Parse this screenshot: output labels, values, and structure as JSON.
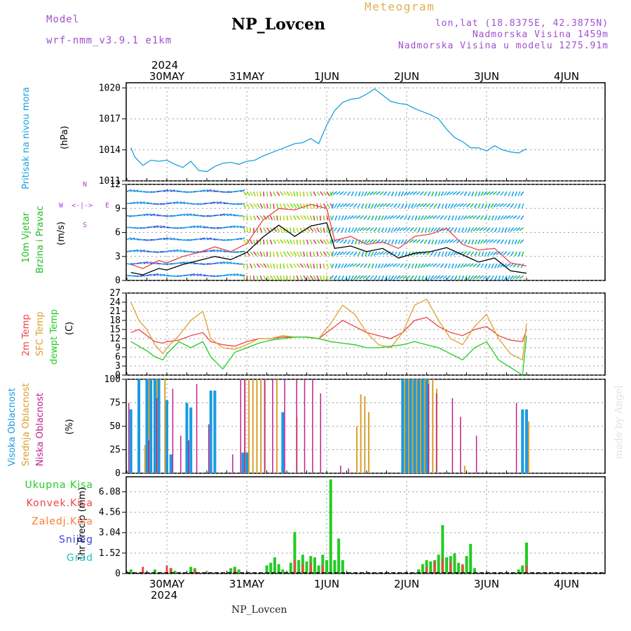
{
  "header": {
    "model_label": "Model",
    "model_name": "wrf-nmm_v3.9.1 e1km",
    "station": "NP_Lovcen",
    "meteogram_label": "Meteogram",
    "lonlat": "lon,lat (18.8375E, 42.3875N)",
    "altitude": "Nadmorska Visina 1459m",
    "model_altitude": "Nadmorska Visina u modelu 1275.91m",
    "year_top": "2024",
    "year_bottom": "2024",
    "footer_station": "NP_Lovcen",
    "watermark": "made by Angel"
  },
  "colors": {
    "pressure": "#1aa0e0",
    "t2m": "#ee4444",
    "sfc": "#e0a030",
    "dew": "#22cc22",
    "high_cloud": "#1a9ae0",
    "mid_cloud": "#d8a030",
    "low_cloud": "#c02090",
    "total_precip": "#22cc22",
    "conv_precip": "#ee4444",
    "frozen_precip": "#ff7a30",
    "snow": "#4040dd",
    "graupel": "#22c4c4",
    "wind_label": "#22bb22",
    "wind_dir_label": "#b040e0"
  },
  "chart_data": [
    {
      "type": "line",
      "title": "",
      "ylabel_parts": [
        "Pritisak na nivou mora",
        "(hPa)"
      ],
      "ylim": [
        1011,
        1020.5
      ],
      "yticks": [
        "1011",
        "1014",
        "1017",
        "1020"
      ],
      "x_unit": "days since 2024-05-30 00 UTC",
      "x_tick_labels": [
        "30MAY",
        "31MAY",
        "1JUN",
        "2JUN",
        "3JUN",
        "4JUN"
      ],
      "series": [
        {
          "name": "Pritisak na nivou mora",
          "x": [
            -0.45,
            -0.4,
            -0.3,
            -0.2,
            -0.1,
            0.0,
            0.1,
            0.2,
            0.3,
            0.4,
            0.5,
            0.6,
            0.7,
            0.8,
            0.9,
            1.0,
            1.1,
            1.2,
            1.3,
            1.4,
            1.5,
            1.6,
            1.7,
            1.8,
            1.9,
            2.0,
            2.1,
            2.2,
            2.3,
            2.4,
            2.5,
            2.6,
            2.7,
            2.8,
            2.9,
            3.0,
            3.1,
            3.2,
            3.3,
            3.4,
            3.5,
            3.6,
            3.7,
            3.8,
            3.9,
            4.0,
            4.1,
            4.2,
            4.3,
            4.4,
            4.5
          ],
          "values": [
            1014.2,
            1013.3,
            1012.5,
            1013.0,
            1012.9,
            1013.0,
            1012.6,
            1012.3,
            1012.9,
            1012.0,
            1011.9,
            1012.4,
            1012.7,
            1012.8,
            1012.6,
            1012.9,
            1013.0,
            1013.4,
            1013.7,
            1014.0,
            1014.3,
            1014.6,
            1014.7,
            1015.1,
            1014.6,
            1016.4,
            1017.8,
            1018.6,
            1018.9,
            1019.0,
            1019.4,
            1019.9,
            1019.3,
            1018.7,
            1018.5,
            1018.4,
            1018.0,
            1017.7,
            1017.4,
            1017.0,
            1016.0,
            1015.2,
            1014.8,
            1014.2,
            1014.2,
            1013.9,
            1014.4,
            1014.0,
            1013.8,
            1013.7,
            1014.1
          ]
        }
      ]
    },
    {
      "type": "line",
      "title": "",
      "ylabel_parts": [
        "10m Vjetar",
        "Brzina i Pravac",
        "(m/s)"
      ],
      "direction_legend": [
        "N",
        "E",
        "S",
        "W"
      ],
      "ylim": [
        0,
        12
      ],
      "yticks": [
        "0",
        "3",
        "6",
        "9",
        "12"
      ],
      "x_tick_labels": [
        "30MAY",
        "31MAY",
        "1JUN",
        "2JUN",
        "3JUN",
        "4JUN"
      ],
      "series": [
        {
          "name": "Brzina",
          "x": [
            -0.45,
            -0.3,
            -0.1,
            0.0,
            0.2,
            0.4,
            0.6,
            0.8,
            1.0,
            1.2,
            1.4,
            1.6,
            1.8,
            2.0,
            2.1,
            2.3,
            2.5,
            2.7,
            2.9,
            3.1,
            3.3,
            3.5,
            3.7,
            3.9,
            4.1,
            4.3,
            4.5
          ],
          "values": [
            1.0,
            0.7,
            1.5,
            1.3,
            2.0,
            2.5,
            3.0,
            2.6,
            3.5,
            5.4,
            6.9,
            5.5,
            6.8,
            7.2,
            4.0,
            4.3,
            3.6,
            4.0,
            2.8,
            3.4,
            3.6,
            4.1,
            3.2,
            2.3,
            2.8,
            1.2,
            0.9
          ]
        },
        {
          "name": "Udari",
          "x": [
            -0.45,
            -0.3,
            -0.1,
            0.0,
            0.2,
            0.4,
            0.6,
            0.8,
            1.0,
            1.2,
            1.4,
            1.6,
            1.8,
            2.0,
            2.1,
            2.3,
            2.5,
            2.7,
            2.9,
            3.1,
            3.3,
            3.5,
            3.7,
            3.9,
            4.1,
            4.3,
            4.5
          ],
          "values": [
            2.0,
            1.5,
            2.5,
            2.2,
            3.0,
            3.5,
            4.2,
            3.6,
            4.6,
            7.5,
            9.0,
            8.8,
            9.5,
            9.0,
            5.0,
            5.5,
            4.5,
            4.8,
            4.0,
            5.5,
            5.8,
            6.5,
            4.5,
            3.8,
            4.0,
            2.2,
            1.8
          ]
        }
      ]
    },
    {
      "type": "line",
      "title": "",
      "ylabel_parts": [
        "2m Temp",
        "SFC Temp",
        "dewpt Temp",
        "(C)"
      ],
      "ylim": [
        0,
        27
      ],
      "yticks": [
        "0",
        "3",
        "6",
        "9",
        "12",
        "15",
        "18",
        "21",
        "24",
        "27"
      ],
      "x_tick_labels": [
        "30MAY",
        "31MAY",
        "1JUN",
        "2JUN",
        "3JUN",
        "4JUN"
      ],
      "series": [
        {
          "name": "2m Temp",
          "x": [
            -0.45,
            -0.35,
            -0.25,
            -0.15,
            -0.05,
            0.0,
            0.15,
            0.3,
            0.45,
            0.55,
            0.7,
            0.85,
            1.0,
            1.15,
            1.3,
            1.45,
            1.6,
            1.75,
            1.9,
            2.05,
            2.2,
            2.35,
            2.5,
            2.65,
            2.8,
            2.95,
            3.1,
            3.25,
            3.4,
            3.55,
            3.7,
            3.85,
            4.0,
            4.15,
            4.3,
            4.45,
            4.5
          ],
          "values": [
            14,
            15,
            13,
            11,
            10.5,
            11,
            11.5,
            13,
            14,
            11,
            10,
            9.5,
            11,
            12,
            12,
            12.5,
            12.5,
            12.5,
            12,
            15,
            18,
            16,
            14,
            13,
            12,
            14,
            18,
            19,
            16,
            14,
            13,
            15,
            16,
            13,
            11.5,
            11,
            15
          ]
        },
        {
          "name": "SFC Temp",
          "x": [
            -0.45,
            -0.35,
            -0.25,
            -0.15,
            -0.05,
            0.0,
            0.15,
            0.3,
            0.45,
            0.55,
            0.7,
            0.85,
            1.0,
            1.15,
            1.3,
            1.45,
            1.6,
            1.75,
            1.9,
            2.05,
            2.2,
            2.35,
            2.5,
            2.65,
            2.8,
            2.95,
            3.1,
            3.25,
            3.4,
            3.55,
            3.7,
            3.85,
            4.0,
            4.15,
            4.3,
            4.45,
            4.5
          ],
          "values": [
            24,
            18,
            15,
            10,
            7,
            9,
            13,
            18,
            21,
            12,
            9,
            8.5,
            10,
            12,
            12,
            13,
            12.5,
            12.5,
            12,
            17,
            23,
            20,
            14,
            10,
            9,
            14,
            23,
            25,
            18,
            12,
            10,
            16,
            20,
            12,
            7,
            5,
            17
          ]
        },
        {
          "name": "dewpt Temp",
          "x": [
            -0.45,
            -0.35,
            -0.25,
            -0.15,
            -0.05,
            0.0,
            0.15,
            0.3,
            0.45,
            0.55,
            0.7,
            0.85,
            1.0,
            1.15,
            1.3,
            1.45,
            1.6,
            1.75,
            1.9,
            2.05,
            2.2,
            2.35,
            2.5,
            2.65,
            2.8,
            2.95,
            3.1,
            3.25,
            3.4,
            3.55,
            3.7,
            3.85,
            4.0,
            4.15,
            4.3,
            4.45,
            4.5
          ],
          "values": [
            11,
            9.5,
            8,
            6,
            5,
            7,
            11,
            9,
            11,
            6,
            2,
            7.5,
            9,
            10.5,
            11.5,
            12,
            12.5,
            12.5,
            12,
            11,
            10.5,
            10,
            9,
            9,
            9.5,
            10,
            11,
            10,
            9,
            7,
            5,
            9,
            11,
            5,
            2.5,
            0,
            13
          ]
        }
      ]
    },
    {
      "type": "bar",
      "title": "",
      "ylabel_parts": [
        "Visoka Oblacnost",
        "Srednja Oblacnost",
        "Niska Oblacnost",
        "(%)"
      ],
      "ylim": [
        0,
        100
      ],
      "yticks": [
        "0",
        "25",
        "50",
        "75",
        "100"
      ],
      "x_tick_labels": [
        "30MAY",
        "31MAY",
        "1JUN",
        "2JUN",
        "3JUN",
        "4JUN"
      ],
      "series": [
        {
          "name": "Visoka Oblacnost",
          "x": [
            -0.45,
            -0.35,
            -0.25,
            -0.2,
            -0.15,
            -0.1,
            0.0,
            0.05,
            0.25,
            0.3,
            0.55,
            0.6,
            0.95,
            1.0,
            1.2,
            1.45,
            2.95,
            3.0,
            3.05,
            3.1,
            3.15,
            3.2,
            3.25,
            4.45,
            4.5
          ],
          "values": [
            68,
            100,
            100,
            100,
            100,
            100,
            78,
            20,
            75,
            70,
            88,
            88,
            22,
            22,
            0,
            65,
            100,
            100,
            100,
            100,
            100,
            100,
            100,
            68,
            68
          ]
        },
        {
          "name": "Srednja Oblacnost",
          "x": [
            -0.3,
            -0.25,
            -0.15,
            -0.05,
            0.35,
            0.95,
            1.0,
            1.05,
            1.1,
            1.15,
            1.2,
            1.35,
            1.6,
            2.35,
            2.4,
            2.45,
            2.5,
            2.95,
            3.0,
            3.05,
            3.1,
            3.15,
            3.2,
            3.25,
            3.3,
            3.35,
            3.7,
            4.5
          ],
          "values": [
            30,
            100,
            100,
            100,
            0,
            100,
            100,
            100,
            100,
            100,
            100,
            100,
            60,
            50,
            84,
            82,
            65,
            100,
            100,
            100,
            100,
            100,
            100,
            100,
            100,
            90,
            8,
            55
          ]
        },
        {
          "name": "Niska Oblacnost",
          "x": [
            -0.45,
            -0.2,
            -0.1,
            0.1,
            0.2,
            0.3,
            0.4,
            0.55,
            0.85,
            0.95,
            1.0,
            1.25,
            1.35,
            1.5,
            1.65,
            1.75,
            1.85,
            1.95,
            2.2,
            2.3,
            3.3,
            3.4,
            3.6,
            3.7,
            3.9,
            4.4
          ],
          "values": [
            75,
            35,
            80,
            90,
            40,
            35,
            95,
            52,
            20,
            100,
            100,
            100,
            100,
            100,
            100,
            100,
            100,
            85,
            8,
            5,
            95,
            85,
            80,
            60,
            40,
            75
          ]
        }
      ]
    },
    {
      "type": "bar",
      "title": "",
      "ylabel_parts": [
        "1hr Precip (mm)"
      ],
      "legend": [
        "Ukupna Kisa",
        "Konvek.Kisa",
        "Zaledj.Kisa",
        "Snijeg",
        "Grad"
      ],
      "ylim": [
        0,
        7.2
      ],
      "yticks": [
        "0",
        "1.52",
        "3.04",
        "4.56",
        "6.08"
      ],
      "x_tick_labels": [
        "30MAY",
        "31MAY",
        "1JUN",
        "2JUN",
        "3JUN",
        "4JUN"
      ],
      "series": [
        {
          "name": "Ukupna Kisa",
          "x": [
            -0.45,
            -0.3,
            -0.15,
            0.05,
            0.1,
            0.3,
            0.35,
            0.8,
            0.85,
            0.9,
            1.25,
            1.3,
            1.35,
            1.4,
            1.45,
            1.55,
            1.6,
            1.65,
            1.7,
            1.75,
            1.8,
            1.85,
            1.9,
            1.95,
            2.0,
            2.05,
            2.1,
            2.15,
            2.2,
            3.15,
            3.2,
            3.25,
            3.3,
            3.35,
            3.4,
            3.45,
            3.5,
            3.55,
            3.6,
            3.65,
            3.7,
            3.75,
            3.8,
            3.85,
            4.4,
            4.45,
            4.5
          ],
          "values": [
            0.3,
            0.1,
            0.3,
            0.4,
            0.2,
            0.5,
            0.4,
            0.4,
            0.5,
            0.3,
            0.6,
            0.8,
            1.2,
            0.7,
            0.3,
            0.8,
            3.1,
            1.0,
            1.4,
            0.9,
            1.3,
            1.2,
            0.6,
            1.4,
            1.0,
            7.0,
            1.0,
            2.6,
            1.0,
            0.3,
            0.7,
            1.0,
            0.9,
            1.0,
            1.4,
            3.6,
            1.2,
            1.3,
            1.5,
            0.8,
            0.6,
            1.3,
            2.2,
            0.4,
            0.3,
            0.6,
            2.3
          ]
        },
        {
          "name": "Konvek.Kisa",
          "x": [
            -0.3,
            0.0,
            0.05,
            0.35,
            0.85,
            1.6,
            1.7,
            1.8,
            1.95,
            3.25,
            3.35,
            3.45,
            3.55,
            3.7,
            4.5
          ],
          "values": [
            0.5,
            0.6,
            0.4,
            0.3,
            0.3,
            1.0,
            0.7,
            0.8,
            0.6,
            0.5,
            0.9,
            1.1,
            0.9,
            0.7,
            0.6
          ]
        }
      ]
    }
  ]
}
